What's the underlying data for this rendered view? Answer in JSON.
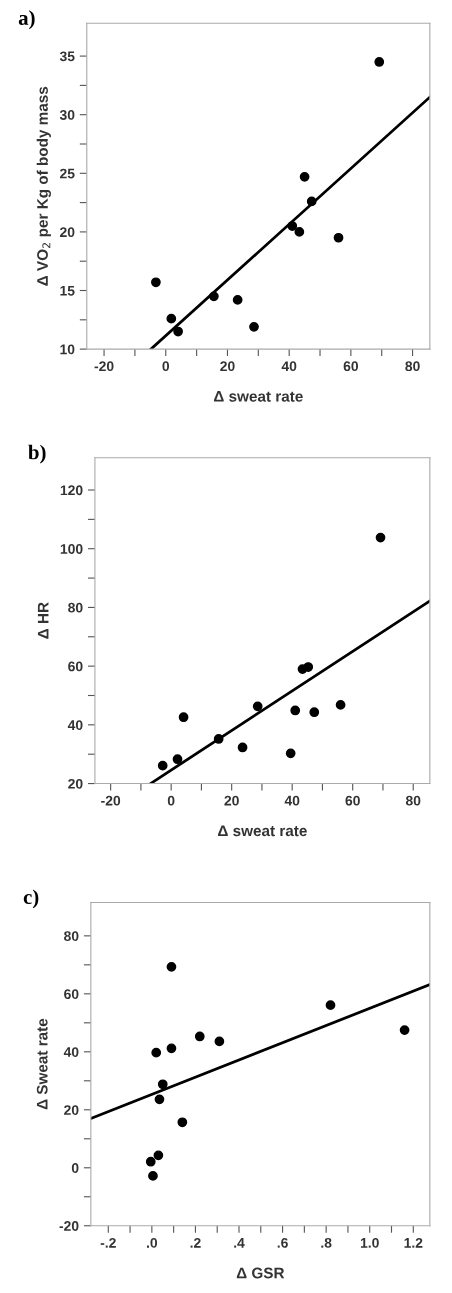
{
  "chart_data": [
    {
      "type": "scatter",
      "title": "a)",
      "xlabel": "Δ sweat rate",
      "ylabel": "Δ VO$_{2}$ per Kg of body mass",
      "marker": "circle",
      "grid": false,
      "legend": false,
      "xlim": [
        -25.6,
        85.6
      ],
      "ylim": [
        10,
        37.8
      ],
      "xticks": [
        -20,
        {
          "value": -10,
          "label": null
        },
        0,
        {
          "value": 10,
          "label": null
        },
        20,
        {
          "value": 30,
          "label": null
        },
        40,
        {
          "value": 50,
          "label": null
        },
        60,
        {
          "value": 70,
          "label": null
        },
        80
      ],
      "yticks": [
        10,
        {
          "value": 12.5,
          "label": null
        },
        15,
        {
          "value": 17.5,
          "label": null
        },
        20,
        {
          "value": 22.5,
          "label": null
        },
        25,
        {
          "value": 27.5,
          "label": null
        },
        30,
        {
          "value": 32.5,
          "label": null
        },
        35
      ],
      "series": [
        {
          "color": "#000000",
          "x": [
            -3.2,
            1.8,
            4.0,
            15.6,
            23.3,
            28.6,
            41.0,
            43.3,
            45.0,
            47.3,
            56.0,
            69.2
          ],
          "values": [
            15.7,
            12.6,
            11.5,
            14.5,
            14.2,
            11.9,
            20.5,
            20.0,
            24.7,
            22.6,
            19.5,
            34.5
          ]
        },
        {
          "type": "line",
          "marker": "none",
          "color": "#000000",
          "x": [
            -4.8,
            85.6
          ],
          "values": [
            10,
            31.5
          ]
        }
      ]
    },
    {
      "type": "scatter",
      "title": "b)",
      "xlabel": "Δ sweat rate",
      "ylabel": "Δ HR",
      "marker": "circle",
      "grid": false,
      "legend": false,
      "xlim": [
        -25.2,
        85.5
      ],
      "ylim": [
        20,
        131
      ],
      "xticks": [
        -20,
        {
          "value": -10,
          "label": null
        },
        0,
        {
          "value": 10,
          "label": null
        },
        20,
        {
          "value": 30,
          "label": null
        },
        40,
        {
          "value": 50,
          "label": null
        },
        60,
        {
          "value": 70,
          "label": null
        },
        80
      ],
      "yticks": [
        20,
        {
          "value": 30,
          "label": null
        },
        40,
        {
          "value": 50,
          "label": null
        },
        60,
        {
          "value": 70,
          "label": null
        },
        80,
        {
          "value": 90,
          "label": null
        },
        100,
        {
          "value": 110,
          "label": null
        },
        120
      ],
      "series": [
        {
          "color": "#000000",
          "x": [
            -2.8,
            2.1,
            4.1,
            15.7,
            23.6,
            28.6,
            39.5,
            41.0,
            43.4,
            45.3,
            47.3,
            56.0,
            69.2
          ],
          "values": [
            26.1,
            28.3,
            42.6,
            35.2,
            32.3,
            46.3,
            30.3,
            44.9,
            59.0,
            59.7,
            44.3,
            46.8,
            103.8
          ]
        },
        {
          "type": "line",
          "marker": "none",
          "color": "#000000",
          "x": [
            -6.8,
            85.5
          ],
          "values": [
            20,
            82.2
          ]
        }
      ]
    },
    {
      "type": "scatter",
      "title": "c)",
      "xlabel": "Δ GSR",
      "ylabel": "Δ Sweat rate",
      "marker": "circle",
      "grid": false,
      "legend": false,
      "xlim": [
        -0.28,
        1.276
      ],
      "ylim": [
        -20,
        91.5
      ],
      "xticks": [
        {
          "value": -0.2,
          "label": "-.2"
        },
        {
          "value": -0.1,
          "label": null
        },
        {
          "value": 0,
          "label": ".0"
        },
        {
          "value": 0.1,
          "label": null
        },
        {
          "value": 0.2,
          "label": ".2"
        },
        {
          "value": 0.3,
          "label": null
        },
        {
          "value": 0.4,
          "label": ".4"
        },
        {
          "value": 0.5,
          "label": null
        },
        {
          "value": 0.6,
          "label": ".6"
        },
        {
          "value": 0.7,
          "label": null
        },
        {
          "value": 0.8,
          "label": ".8"
        },
        {
          "value": 0.9,
          "label": null
        },
        {
          "value": 1.0,
          "label": "1.0"
        },
        {
          "value": 1.1,
          "label": null
        },
        {
          "value": 1.2,
          "label": "1.2"
        }
      ],
      "yticks": [
        -20,
        {
          "value": -10,
          "label": null
        },
        0,
        {
          "value": 10,
          "label": null
        },
        20,
        {
          "value": 30,
          "label": null
        },
        40,
        {
          "value": 50,
          "label": null
        },
        60,
        {
          "value": 70,
          "label": null
        },
        80
      ],
      "series": [
        {
          "color": "#000000",
          "x": [
            -0.005,
            0.005,
            0.03,
            0.02,
            0.05,
            0.035,
            0.09,
            0.09,
            0.14,
            0.22,
            0.31,
            0.82,
            1.16
          ],
          "values": [
            2.1,
            -2.8,
            4.3,
            39.7,
            28.8,
            23.6,
            69.3,
            41.2,
            15.7,
            45.3,
            43.6,
            56.1,
            47.5
          ]
        },
        {
          "type": "line",
          "marker": "none",
          "color": "#000000",
          "x": [
            -0.28,
            1.276
          ],
          "values": [
            17.0,
            63.2
          ]
        }
      ]
    }
  ]
}
